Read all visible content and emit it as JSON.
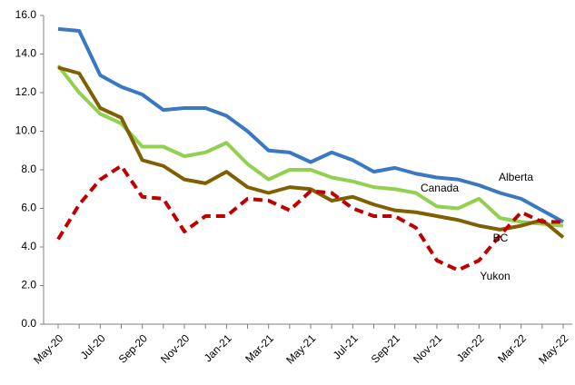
{
  "chart_data": {
    "type": "line",
    "categories": [
      "May-20",
      null,
      "Jul-20",
      null,
      "Sep-20",
      null,
      "Nov-20",
      null,
      "Jan-21",
      null,
      "Mar-21",
      null,
      "May-21",
      null,
      "Jul-21",
      null,
      "Sep-21",
      null,
      "Nov-21",
      null,
      "Jan-22",
      null,
      "Mar-22",
      null,
      "May-22"
    ],
    "series": [
      {
        "name": "Alberta",
        "color": "#3a78c3",
        "dashed": false,
        "values": [
          15.3,
          15.2,
          12.9,
          12.3,
          11.9,
          11.1,
          11.2,
          11.2,
          10.8,
          10.0,
          9.0,
          8.9,
          8.4,
          8.9,
          8.5,
          7.9,
          8.1,
          7.8,
          7.6,
          7.5,
          7.2,
          6.8,
          6.5,
          5.9,
          5.3
        ]
      },
      {
        "name": "Canada",
        "color": "#92d050",
        "dashed": false,
        "values": [
          13.4,
          12.0,
          10.9,
          10.4,
          9.2,
          9.2,
          8.7,
          8.9,
          9.4,
          8.3,
          7.5,
          8.0,
          8.0,
          7.6,
          7.4,
          7.1,
          7.0,
          6.8,
          6.1,
          6.0,
          6.5,
          5.5,
          5.3,
          5.2,
          5.1
        ]
      },
      {
        "name": "BC",
        "color": "#7f6000",
        "dashed": false,
        "values": [
          13.3,
          13.0,
          11.2,
          10.7,
          8.5,
          8.2,
          7.5,
          7.3,
          7.9,
          7.1,
          6.8,
          7.1,
          7.0,
          6.4,
          6.6,
          6.2,
          5.9,
          5.8,
          5.6,
          5.4,
          5.1,
          4.9,
          5.1,
          5.4,
          4.5
        ]
      },
      {
        "name": "Yukon",
        "color": "#c00000",
        "dashed": true,
        "values": [
          4.4,
          6.2,
          7.5,
          8.2,
          6.6,
          6.5,
          4.8,
          5.6,
          5.6,
          6.5,
          6.4,
          5.9,
          6.9,
          6.8,
          6.0,
          5.6,
          5.6,
          5.0,
          3.3,
          2.8,
          3.3,
          4.6,
          5.8,
          5.3,
          5.3
        ]
      }
    ],
    "ylim": [
      0,
      16
    ],
    "yticks": [
      {
        "value": 0,
        "label": "0.0"
      },
      {
        "value": 2,
        "label": "2.0"
      },
      {
        "value": 4,
        "label": "4.0"
      },
      {
        "value": 6,
        "label": "6.0"
      },
      {
        "value": 8,
        "label": "8.0"
      },
      {
        "value": 10,
        "label": "10.0"
      },
      {
        "value": 12,
        "label": "12.0"
      },
      {
        "value": 14,
        "label": "14.0"
      },
      {
        "value": 16,
        "label": "16.0"
      }
    ],
    "grid": false
  }
}
